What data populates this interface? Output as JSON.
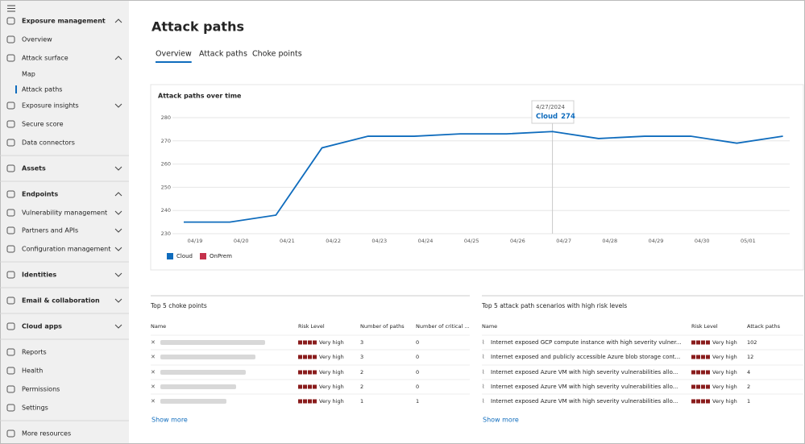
{
  "nav": [
    {
      "label": "Exposure management",
      "bold": true,
      "chevron": "up"
    },
    {
      "label": "Overview"
    },
    {
      "label": "Attack surface",
      "chevron": "up"
    },
    {
      "label": "Map",
      "indent": true
    },
    {
      "label": "Attack paths",
      "indent": true,
      "selected": true
    },
    {
      "label": "Exposure insights",
      "chevron": "down"
    },
    {
      "label": "Secure score"
    },
    {
      "label": "Data connectors"
    },
    {
      "label": "Assets",
      "bold": true,
      "chevron": "down"
    },
    {
      "label": "Endpoints",
      "bold": true,
      "chevron": "up"
    },
    {
      "label": "Vulnerability management",
      "chevron": "down"
    },
    {
      "label": "Partners and APIs",
      "chevron": "down"
    },
    {
      "label": "Configuration management",
      "chevron": "down"
    },
    {
      "label": "Identities",
      "bold": true,
      "chevron": "down"
    },
    {
      "label": "Email & collaboration",
      "bold": true,
      "chevron": "down"
    },
    {
      "label": "Cloud apps",
      "bold": true,
      "chevron": "down"
    },
    {
      "label": "Reports"
    },
    {
      "label": "Health"
    },
    {
      "label": "Permissions"
    },
    {
      "label": "Settings"
    },
    {
      "label": "More resources"
    }
  ],
  "page_title": "Attack paths",
  "tabs": [
    {
      "label": "Overview",
      "selected": true
    },
    {
      "label": "Attack paths"
    },
    {
      "label": "Choke points"
    }
  ],
  "chart_data": {
    "type": "line",
    "title": "Attack paths over time",
    "categories": [
      "04/19",
      "04/20",
      "04/21",
      "04/22",
      "04/23",
      "04/24",
      "04/25",
      "04/26",
      "04/27",
      "04/28",
      "04/29",
      "04/30",
      "05/01",
      null
    ],
    "series": [
      {
        "name": "Cloud",
        "color": "#0f6cbd",
        "values": [
          235,
          235,
          238,
          267,
          272,
          272,
          273,
          273,
          274,
          271,
          272,
          272,
          269,
          272
        ]
      },
      {
        "name": "OnPrem",
        "color": "#c4314b",
        "values": [
          null,
          null,
          null,
          null,
          null,
          null,
          null,
          null,
          null,
          null,
          null,
          null,
          null,
          null
        ]
      }
    ],
    "ylim": [
      230,
      280
    ],
    "yticks": [
      230,
      240,
      250,
      260,
      270,
      280
    ],
    "grid": true,
    "tooltip": {
      "index": 8,
      "date": "4/27/2024"
    }
  },
  "choke_table": {
    "title": "Top 5 choke points",
    "columns": [
      "Name",
      "Risk Level",
      "Number of paths",
      "Number of critical ..."
    ],
    "rows": [
      [
        "Very high",
        "3",
        "0"
      ],
      [
        "Very high",
        "3",
        "0"
      ],
      [
        "Very high",
        "2",
        "0"
      ],
      [
        "Very high",
        "2",
        "0"
      ],
      [
        "Very high",
        "1",
        "1"
      ]
    ],
    "show_more": "Show more"
  },
  "scenario_table": {
    "title": "Top 5 attack path scenarios with high risk levels",
    "columns": [
      "Name",
      "Risk Level",
      "Attack paths"
    ],
    "rows": [
      [
        "Internet exposed GCP compute instance with high severity vulner...",
        "Very high",
        "102"
      ],
      [
        "Internet exposed and publicly accessible Azure blob storage cont...",
        "Very high",
        "12"
      ],
      [
        "Internet exposed Azure VM with high severity vulnerabilities allo...",
        "Very high",
        "4"
      ],
      [
        "Internet exposed Azure VM with high severity vulnerabilities allo...",
        "Very high",
        "2"
      ],
      [
        "Internet exposed Azure VM with high severity vulnerabilities allo...",
        "Very high",
        "1"
      ]
    ],
    "show_more": "Show more"
  }
}
